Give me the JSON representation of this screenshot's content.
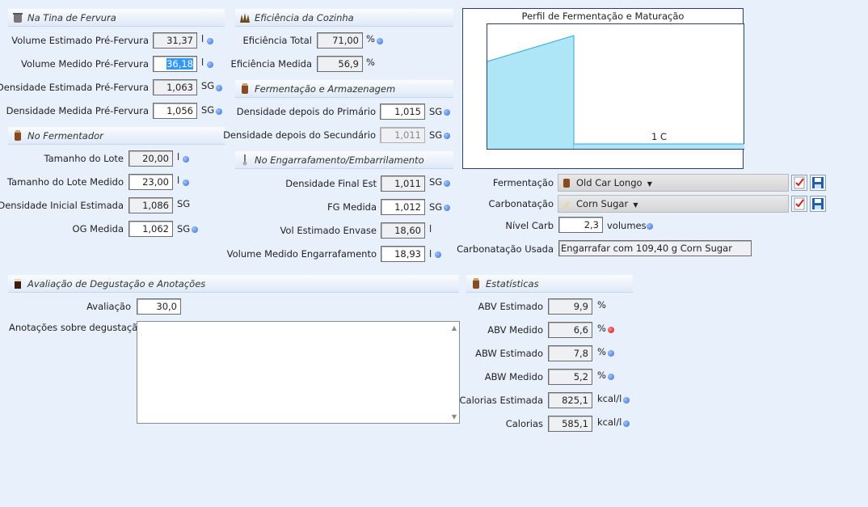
{
  "boil": {
    "title": "Na Tina de Fervura",
    "est_vol_label": "Volume Estimado Pré-Fervura",
    "est_vol": "31,37",
    "est_vol_unit": "l",
    "meas_vol_label": "Volume Medido Pré-Fervura",
    "meas_vol": "36,18",
    "meas_vol_unit": "l",
    "est_grav_label": "Densidade Estimada Pré-Fervura",
    "est_grav": "1,063",
    "est_grav_unit": "SG",
    "meas_grav_label": "Densidade Medida Pré-Fervura",
    "meas_grav": "1,056",
    "meas_grav_unit": "SG"
  },
  "fermenter": {
    "title": "No Fermentador",
    "batch_label": "Tamanho do Lote",
    "batch": "20,00",
    "batch_unit": "l",
    "meas_batch_label": "Tamanho do Lote Medido",
    "meas_batch": "23,00",
    "meas_batch_unit": "l",
    "est_og_label": "Densidade Inicial Estimada",
    "est_og": "1,086",
    "est_og_unit": "SG",
    "og_label": "OG Medida",
    "og": "1,062",
    "og_unit": "SG"
  },
  "efficiency": {
    "title": "Eficiência da Cozinha",
    "total_label": "Eficiência Total",
    "total": "71,00",
    "total_unit": "%",
    "meas_label": "Eficiência Medida",
    "meas": "56,9",
    "meas_unit": "%"
  },
  "fermentation": {
    "title": "Fermentação e Armazenagem",
    "primary_label": "Densidade depois do Primário",
    "primary": "1,015",
    "primary_unit": "SG",
    "secondary_label": "Densidade depois do Secundário",
    "secondary": "1,011",
    "secondary_unit": "SG"
  },
  "bottling": {
    "title": "No Engarrafamento/Embarrilamento",
    "fg_est_label": "Densidade Final Est",
    "fg_est": "1,011",
    "fg_est_unit": "SG",
    "fg_label": "FG Medida",
    "fg": "1,012",
    "fg_unit": "SG",
    "vol_est_label": "Vol Estimado Envase",
    "vol_est": "18,60",
    "vol_est_unit": "l",
    "vol_meas_label": "Volume Medido Engarrafamento",
    "vol_meas": "18,93",
    "vol_meas_unit": "l"
  },
  "profile": {
    "title": "Perfil de Fermentação e Maturação",
    "temp_label": "1 C"
  },
  "carb": {
    "ferm_label": "Fermentação",
    "ferm_value": "Old Car Longo",
    "carb_label": "Carbonatação",
    "carb_value": "Corn Sugar",
    "level_label": "Nível Carb",
    "level": "2,3",
    "level_unit": "volumes",
    "used_label": "Carbonatação Usada",
    "used": "Engarrafar com 109,40 g Corn Sugar"
  },
  "tasting": {
    "title": "Avaliação de Degustação e Anotações",
    "rating_label": "Avaliação",
    "rating": "30,0",
    "notes_label": "Anotações sobre degustação",
    "notes": ""
  },
  "stats": {
    "title": "Estatísticas",
    "rows": [
      {
        "label": "ABV Estimado",
        "value": "9,9",
        "unit": "%"
      },
      {
        "label": "ABV Medido",
        "value": "6,6",
        "unit": "%"
      },
      {
        "label": "ABW Estimado",
        "value": "7,8",
        "unit": "%"
      },
      {
        "label": "ABW Medido",
        "value": "5,2",
        "unit": "%"
      },
      {
        "label": "Calorias Estimada",
        "value": "825,1",
        "unit": "kcal/l"
      },
      {
        "label": "Calorias",
        "value": "585,1",
        "unit": "kcal/l"
      }
    ]
  },
  "icons": {
    "boil": "kettle-icon",
    "fermenter": "fermenter-icon",
    "efficiency": "hops-icon",
    "fermentation": "fermenter-icon",
    "bottling": "thermometer-icon",
    "tasting": "glass-icon",
    "stats": "fermenter-icon"
  },
  "colors": {
    "chart_fill": "#aee6f8",
    "chart_line": "#2aa8d8",
    "accent_dot": "#3a6fd0",
    "warn_dot": "#d01010"
  }
}
